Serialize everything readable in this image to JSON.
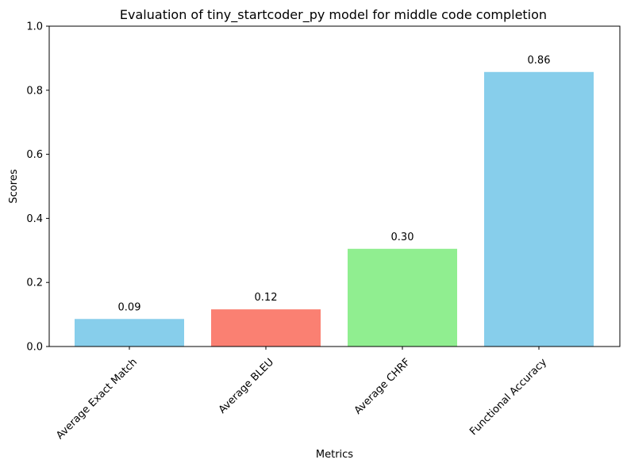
{
  "chart_data": {
    "type": "bar",
    "title": "Evaluation of tiny_startcoder_py model for middle code completion",
    "xlabel": "Metrics",
    "ylabel": "Scores",
    "ylim": [
      0,
      1.0
    ],
    "yticks": [
      "0.0",
      "0.2",
      "0.4",
      "0.6",
      "0.8",
      "1.0"
    ],
    "categories": [
      "Average Exact Match",
      "Average BLEU",
      "Average CHRF",
      "Functional Accuracy"
    ],
    "values": [
      0.086,
      0.116,
      0.305,
      0.857
    ],
    "value_labels": [
      "0.09",
      "0.12",
      "0.30",
      "0.86"
    ],
    "colors": [
      "#87ceeb",
      "#fa8072",
      "#90ee90",
      "#87ceeb"
    ],
    "grid": false,
    "legend": "none"
  }
}
